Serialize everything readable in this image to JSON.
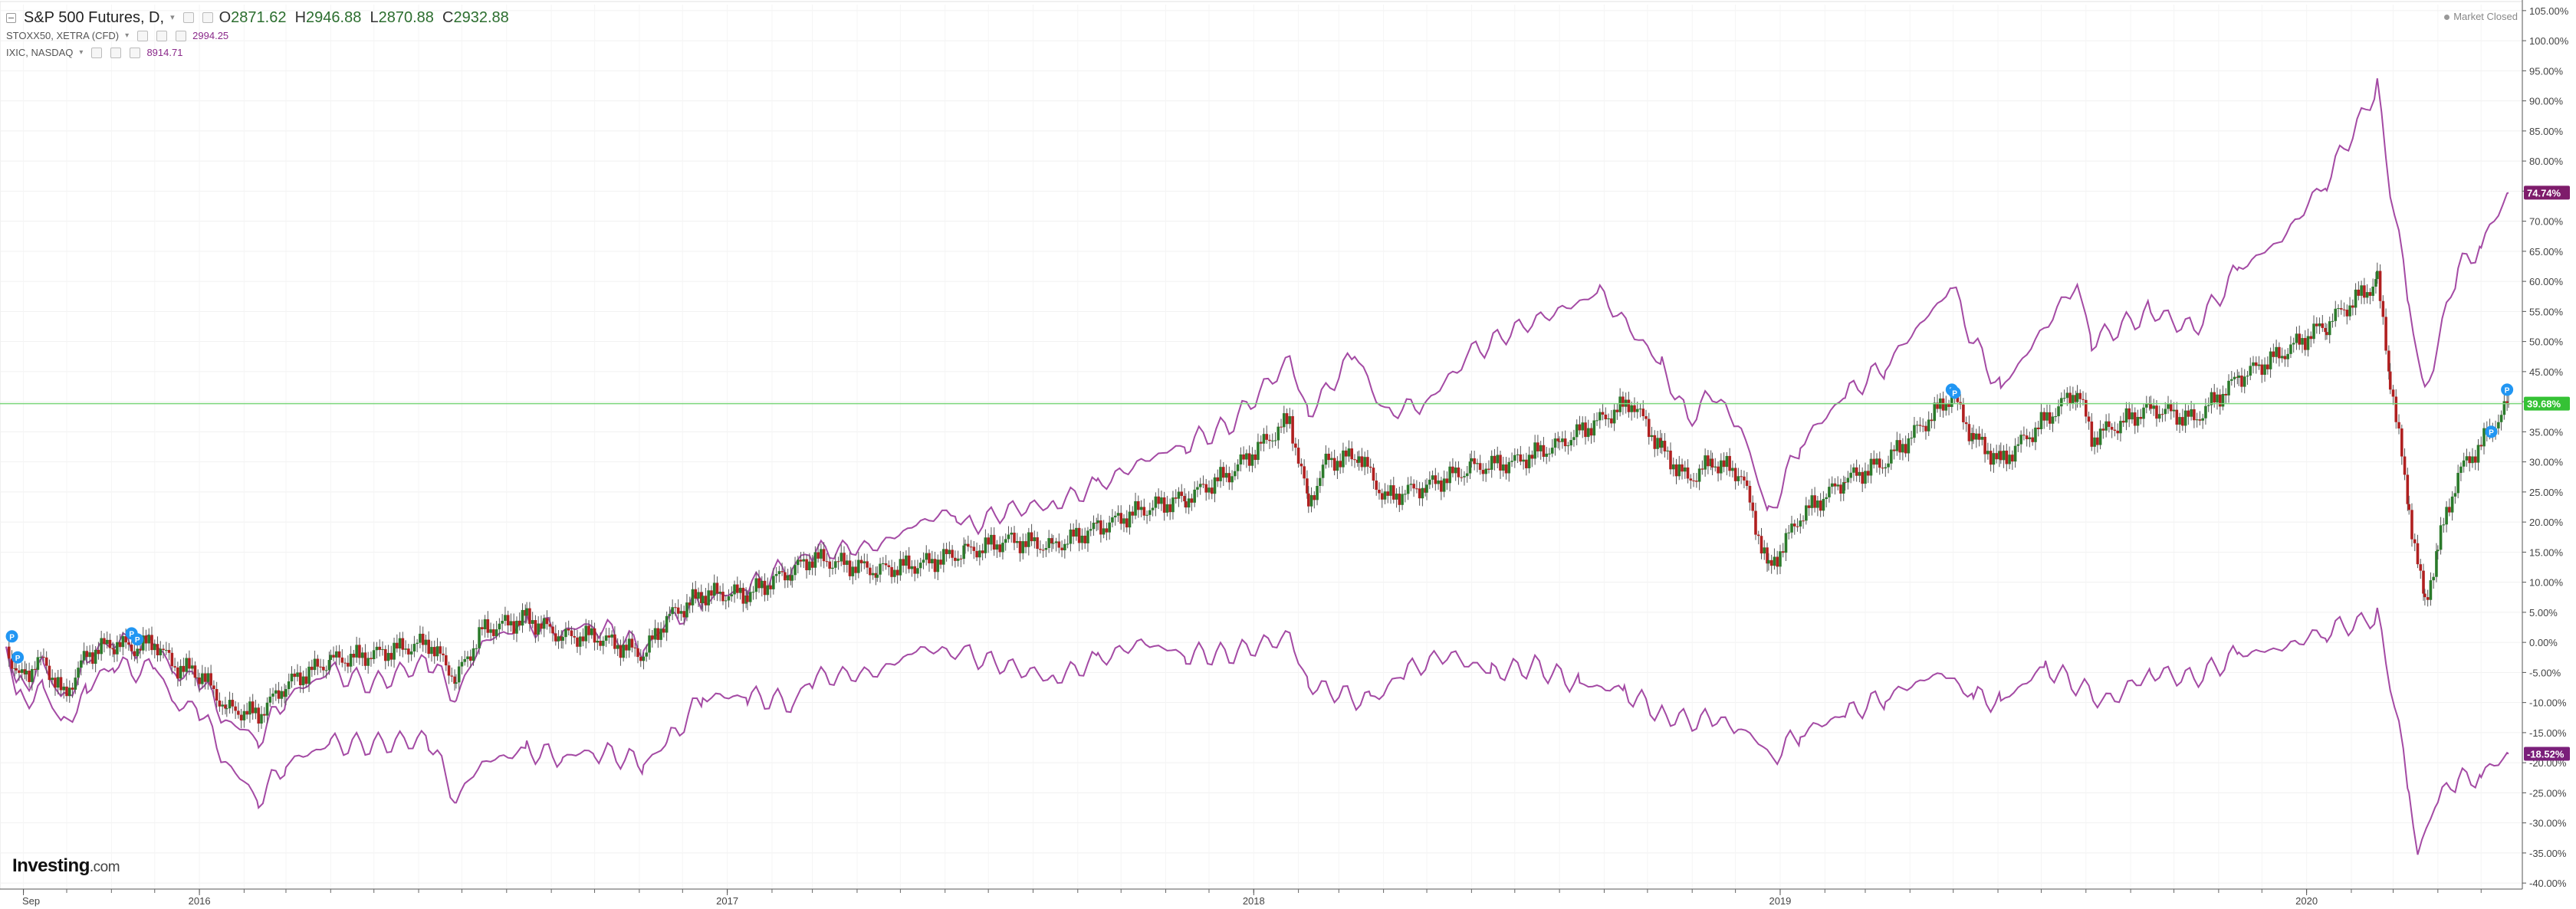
{
  "legend": {
    "main": {
      "symbol": "S&P 500 Futures, D,",
      "o_label": "O",
      "o": "2871.62",
      "h_label": "H",
      "h": "2946.88",
      "l_label": "L",
      "l": "2870.88",
      "c_label": "C",
      "c": "2932.88"
    },
    "compare1": {
      "symbol": "STOXX50, XETRA (CFD)",
      "value": "2994.25"
    },
    "compare2": {
      "symbol": "IXIC, NASDAQ",
      "value": "8914.71"
    }
  },
  "status": "Market Closed",
  "logo": {
    "brand": "Investing",
    "suffix": ".com"
  },
  "colors": {
    "up": "#2b7a2b",
    "down": "#b02020",
    "compare": "#a44aa4",
    "price_line": "#7cd67c",
    "price_label_bg": "#35c235",
    "ixic_label_bg": "#7e1c6b",
    "stoxx_label_bg": "#7a1f7a",
    "marker": "#2196f3"
  },
  "chart_data": {
    "type": "line",
    "title": "",
    "ylabel": "",
    "y_unit": "%",
    "ylim": [
      -41,
      106
    ],
    "y_ticks": [
      "105.00%",
      "100.00%",
      "95.00%",
      "90.00%",
      "85.00%",
      "80.00%",
      "75.00%",
      "70.00%",
      "65.00%",
      "60.00%",
      "55.00%",
      "50.00%",
      "45.00%",
      "40.00%",
      "35.00%",
      "30.00%",
      "25.00%",
      "20.00%",
      "15.00%",
      "10.00%",
      "5.00%",
      "0.00%",
      "-5.00%",
      "-10.00%",
      "-15.00%",
      "-20.00%",
      "-25.00%",
      "-30.00%",
      "-35.00%",
      "-40.00%"
    ],
    "x_ticks": [
      {
        "date": "2015-09-01",
        "label": "Sep"
      },
      {
        "date": "2016-01-01",
        "label": "2016"
      },
      {
        "date": "2017-01-01",
        "label": "2017"
      },
      {
        "date": "2018-01-01",
        "label": "2018"
      },
      {
        "date": "2019-01-01",
        "label": "2019"
      },
      {
        "date": "2020-01-01",
        "label": "2020"
      }
    ],
    "x_range": [
      "2015-08-20",
      "2020-05-20"
    ],
    "price_labels": {
      "ixic": {
        "value": 74.74,
        "text": "74.74%"
      },
      "spx": {
        "value": 39.68,
        "text": "39.68%"
      },
      "stoxx": {
        "value": -18.52,
        "text": "-18.52%"
      }
    },
    "series": [
      {
        "name": "S&P 500 Futures",
        "style": "candles",
        "points": [
          [
            "2015-08-20",
            0
          ],
          [
            "2015-08-27",
            -6
          ],
          [
            "2015-09-03",
            -5
          ],
          [
            "2015-09-15",
            -3
          ],
          [
            "2015-09-29",
            -9
          ],
          [
            "2015-10-15",
            -2
          ],
          [
            "2015-11-03",
            0
          ],
          [
            "2015-11-15",
            -1
          ],
          [
            "2015-12-01",
            0
          ],
          [
            "2015-12-15",
            -4
          ],
          [
            "2016-01-01",
            -5
          ],
          [
            "2016-01-20",
            -11
          ],
          [
            "2016-02-11",
            -12
          ],
          [
            "2016-03-01",
            -7
          ],
          [
            "2016-04-01",
            -3
          ],
          [
            "2016-05-01",
            -2
          ],
          [
            "2016-06-08",
            0
          ],
          [
            "2016-06-27",
            -6
          ],
          [
            "2016-07-15",
            2
          ],
          [
            "2016-08-15",
            4
          ],
          [
            "2016-09-09",
            1
          ],
          [
            "2016-10-01",
            1
          ],
          [
            "2016-11-04",
            -2
          ],
          [
            "2016-11-20",
            4
          ],
          [
            "2016-12-15",
            8
          ],
          [
            "2017-01-15",
            8
          ],
          [
            "2017-02-15",
            12
          ],
          [
            "2017-03-01",
            14
          ],
          [
            "2017-04-15",
            12
          ],
          [
            "2017-05-15",
            13
          ],
          [
            "2017-06-15",
            15
          ],
          [
            "2017-07-15",
            17
          ],
          [
            "2017-08-15",
            16
          ],
          [
            "2017-09-15",
            19
          ],
          [
            "2017-10-15",
            22
          ],
          [
            "2017-11-15",
            24
          ],
          [
            "2017-12-15",
            28
          ],
          [
            "2018-01-26",
            37
          ],
          [
            "2018-02-08",
            23
          ],
          [
            "2018-02-20",
            30
          ],
          [
            "2018-03-15",
            31
          ],
          [
            "2018-04-02",
            24
          ],
          [
            "2018-05-01",
            26
          ],
          [
            "2018-06-01",
            29
          ],
          [
            "2018-07-01",
            30
          ],
          [
            "2018-08-01",
            33
          ],
          [
            "2018-09-20",
            40
          ],
          [
            "2018-10-11",
            32
          ],
          [
            "2018-10-29",
            27
          ],
          [
            "2018-11-15",
            30
          ],
          [
            "2018-12-05",
            28
          ],
          [
            "2018-12-24",
            12
          ],
          [
            "2019-01-15",
            21
          ],
          [
            "2019-02-15",
            27
          ],
          [
            "2019-03-15",
            30
          ],
          [
            "2019-04-30",
            41
          ],
          [
            "2019-05-15",
            34
          ],
          [
            "2019-06-03",
            30
          ],
          [
            "2019-07-26",
            42
          ],
          [
            "2019-08-05",
            34
          ],
          [
            "2019-09-15",
            39
          ],
          [
            "2019-10-15",
            37
          ],
          [
            "2019-11-15",
            44
          ],
          [
            "2019-12-15",
            48
          ],
          [
            "2020-01-15",
            53
          ],
          [
            "2020-02-19",
            60
          ],
          [
            "2020-02-28",
            44
          ],
          [
            "2020-03-12",
            22
          ],
          [
            "2020-03-23",
            6
          ],
          [
            "2020-04-01",
            16
          ],
          [
            "2020-04-15",
            28
          ],
          [
            "2020-05-01",
            33
          ],
          [
            "2020-05-20",
            39.68
          ]
        ]
      },
      {
        "name": "IXIC, NASDAQ",
        "style": "line",
        "points": [
          [
            "2015-08-20",
            0
          ],
          [
            "2015-08-27",
            -8
          ],
          [
            "2015-09-15",
            -4
          ],
          [
            "2015-09-29",
            -10
          ],
          [
            "2015-10-15",
            -3
          ],
          [
            "2015-11-03",
            1
          ],
          [
            "2015-11-15",
            -1
          ],
          [
            "2015-12-01",
            0
          ],
          [
            "2015-12-15",
            -5
          ],
          [
            "2016-01-01",
            -6
          ],
          [
            "2016-01-20",
            -13
          ],
          [
            "2016-02-11",
            -16
          ],
          [
            "2016-03-01",
            -9
          ],
          [
            "2016-04-01",
            -5
          ],
          [
            "2016-05-01",
            -7
          ],
          [
            "2016-06-08",
            -3
          ],
          [
            "2016-06-27",
            -9
          ],
          [
            "2016-07-15",
            0
          ],
          [
            "2016-08-15",
            3
          ],
          [
            "2016-09-09",
            2
          ],
          [
            "2016-10-01",
            3
          ],
          [
            "2016-11-04",
            -1
          ],
          [
            "2016-11-20",
            3
          ],
          [
            "2016-12-15",
            7
          ],
          [
            "2017-01-15",
            9
          ],
          [
            "2017-02-15",
            13
          ],
          [
            "2017-03-01",
            15
          ],
          [
            "2017-04-15",
            16
          ],
          [
            "2017-05-15",
            20
          ],
          [
            "2017-06-09",
            22
          ],
          [
            "2017-06-15",
            19
          ],
          [
            "2017-07-15",
            22
          ],
          [
            "2017-08-15",
            23
          ],
          [
            "2017-09-15",
            26
          ],
          [
            "2017-10-15",
            30
          ],
          [
            "2017-11-15",
            33
          ],
          [
            "2017-12-15",
            36
          ],
          [
            "2018-01-26",
            47
          ],
          [
            "2018-02-08",
            38
          ],
          [
            "2018-03-12",
            48
          ],
          [
            "2018-04-02",
            38
          ],
          [
            "2018-05-01",
            40
          ],
          [
            "2018-06-01",
            48
          ],
          [
            "2018-07-01",
            52
          ],
          [
            "2018-08-29",
            58
          ],
          [
            "2018-10-11",
            46
          ],
          [
            "2018-10-29",
            37
          ],
          [
            "2018-11-15",
            41
          ],
          [
            "2018-12-05",
            36
          ],
          [
            "2018-12-24",
            21
          ],
          [
            "2019-01-15",
            33
          ],
          [
            "2019-02-15",
            41
          ],
          [
            "2019-03-15",
            46
          ],
          [
            "2019-04-30",
            59
          ],
          [
            "2019-05-15",
            50
          ],
          [
            "2019-06-03",
            42
          ],
          [
            "2019-07-26",
            60
          ],
          [
            "2019-08-05",
            50
          ],
          [
            "2019-09-15",
            55
          ],
          [
            "2019-10-15",
            52
          ],
          [
            "2019-11-15",
            62
          ],
          [
            "2019-12-15",
            67
          ],
          [
            "2020-01-15",
            77
          ],
          [
            "2020-02-19",
            92
          ],
          [
            "2020-02-28",
            76
          ],
          [
            "2020-03-12",
            56
          ],
          [
            "2020-03-23",
            41
          ],
          [
            "2020-04-01",
            50
          ],
          [
            "2020-04-15",
            62
          ],
          [
            "2020-05-01",
            66
          ],
          [
            "2020-05-20",
            74.74
          ]
        ]
      },
      {
        "name": "STOXX50, XETRA (CFD)",
        "style": "line",
        "points": [
          [
            "2015-08-20",
            0
          ],
          [
            "2015-08-27",
            -10
          ],
          [
            "2015-09-15",
            -8
          ],
          [
            "2015-09-29",
            -14
          ],
          [
            "2015-10-15",
            -8
          ],
          [
            "2015-11-03",
            -3
          ],
          [
            "2015-11-15",
            -5
          ],
          [
            "2015-12-01",
            -4
          ],
          [
            "2015-12-15",
            -10
          ],
          [
            "2016-01-01",
            -11
          ],
          [
            "2016-01-20",
            -20
          ],
          [
            "2016-02-11",
            -26
          ],
          [
            "2016-03-01",
            -20
          ],
          [
            "2016-04-01",
            -17
          ],
          [
            "2016-05-01",
            -17
          ],
          [
            "2016-06-08",
            -16
          ],
          [
            "2016-06-27",
            -26
          ],
          [
            "2016-07-15",
            -20
          ],
          [
            "2016-08-15",
            -18
          ],
          [
            "2016-09-09",
            -19
          ],
          [
            "2016-10-01",
            -18
          ],
          [
            "2016-11-04",
            -20
          ],
          [
            "2016-11-20",
            -17
          ],
          [
            "2016-12-15",
            -9
          ],
          [
            "2017-01-15",
            -9
          ],
          [
            "2017-02-15",
            -10
          ],
          [
            "2017-03-01",
            -6
          ],
          [
            "2017-04-15",
            -5
          ],
          [
            "2017-05-15",
            -1
          ],
          [
            "2017-06-15",
            -2
          ],
          [
            "2017-07-15",
            -4
          ],
          [
            "2017-08-15",
            -6
          ],
          [
            "2017-09-15",
            -3
          ],
          [
            "2017-10-15",
            0
          ],
          [
            "2017-11-15",
            -2
          ],
          [
            "2017-12-15",
            -2
          ],
          [
            "2018-01-26",
            1
          ],
          [
            "2018-02-08",
            -7
          ],
          [
            "2018-03-23",
            -10
          ],
          [
            "2018-04-15",
            -5
          ],
          [
            "2018-05-15",
            -2
          ],
          [
            "2018-06-15",
            -5
          ],
          [
            "2018-07-15",
            -4
          ],
          [
            "2018-08-15",
            -7
          ],
          [
            "2018-09-15",
            -8
          ],
          [
            "2018-10-11",
            -12
          ],
          [
            "2018-10-29",
            -13
          ],
          [
            "2018-11-15",
            -13
          ],
          [
            "2018-12-05",
            -14
          ],
          [
            "2018-12-27",
            -19
          ],
          [
            "2019-01-15",
            -15
          ],
          [
            "2019-02-15",
            -12
          ],
          [
            "2019-03-15",
            -9
          ],
          [
            "2019-04-23",
            -5
          ],
          [
            "2019-05-15",
            -9
          ],
          [
            "2019-06-03",
            -10
          ],
          [
            "2019-07-04",
            -4
          ],
          [
            "2019-08-15",
            -10
          ],
          [
            "2019-09-15",
            -5
          ],
          [
            "2019-10-15",
            -6
          ],
          [
            "2019-11-15",
            -2
          ],
          [
            "2019-12-15",
            -1
          ],
          [
            "2020-01-15",
            2
          ],
          [
            "2020-02-19",
            4
          ],
          [
            "2020-02-28",
            -6
          ],
          [
            "2020-03-12",
            -25
          ],
          [
            "2020-03-18",
            -35
          ],
          [
            "2020-04-01",
            -26
          ],
          [
            "2020-04-15",
            -23
          ],
          [
            "2020-05-01",
            -22
          ],
          [
            "2020-05-20",
            -18.52
          ]
        ]
      }
    ]
  }
}
